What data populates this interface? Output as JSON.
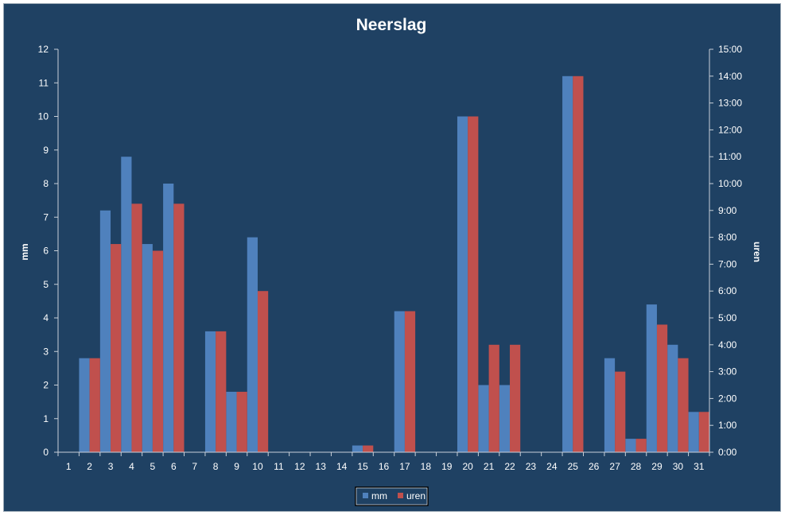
{
  "chart_data": {
    "type": "bar",
    "title": "Neerslag",
    "categories": [
      "1",
      "2",
      "3",
      "4",
      "5",
      "6",
      "7",
      "8",
      "9",
      "10",
      "11",
      "12",
      "13",
      "14",
      "15",
      "16",
      "17",
      "18",
      "19",
      "20",
      "21",
      "22",
      "23",
      "24",
      "25",
      "26",
      "27",
      "28",
      "29",
      "30",
      "31"
    ],
    "ylabel_left": "mm",
    "ylabel_right": "uren",
    "ylim_left": [
      0,
      12
    ],
    "ylim_right_hours": [
      0,
      15
    ],
    "yticks_left": [
      "0",
      "1",
      "2",
      "3",
      "4",
      "5",
      "6",
      "7",
      "8",
      "9",
      "10",
      "11",
      "12"
    ],
    "yticks_right": [
      "0:00",
      "1:00",
      "2:00",
      "3:00",
      "4:00",
      "5:00",
      "6:00",
      "7:00",
      "8:00",
      "9:00",
      "10:00",
      "11:00",
      "12:00",
      "13:00",
      "14:00",
      "15:00"
    ],
    "series": [
      {
        "name": "mm",
        "axis": "left",
        "color": "#4f81bd",
        "values": [
          0,
          2.8,
          7.2,
          8.8,
          6.2,
          8.0,
          0,
          3.6,
          1.8,
          6.4,
          0,
          0,
          0,
          0,
          0.2,
          0,
          4.2,
          0,
          0,
          10.0,
          2.0,
          2.0,
          0,
          0,
          11.2,
          0,
          2.8,
          0.4,
          4.4,
          3.2,
          1.2
        ]
      },
      {
        "name": "uren",
        "axis": "right",
        "color": "#c0504d",
        "values": [
          0,
          3.5,
          7.75,
          9.25,
          7.5,
          9.25,
          0,
          4.5,
          2.25,
          6.0,
          0,
          0,
          0,
          0,
          0.25,
          0,
          5.25,
          0,
          0,
          12.5,
          4.0,
          4.0,
          0,
          0,
          14.0,
          0,
          3.0,
          0.5,
          4.75,
          3.5,
          1.5
        ]
      }
    ],
    "grid": false,
    "legend": "bottom",
    "colors": {
      "background": "#1f4163",
      "text": "#ffffff",
      "axis": "#c8d0d8"
    }
  }
}
